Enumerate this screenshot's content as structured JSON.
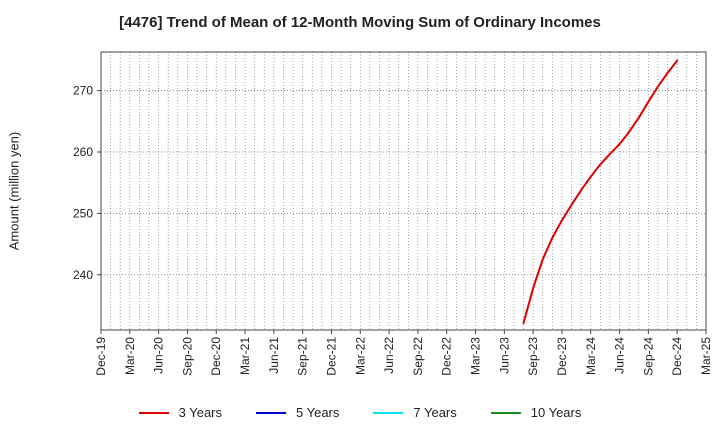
{
  "chart_data": {
    "type": "line",
    "title": "[4476]  Trend of Mean of 12-Month Moving Sum of Ordinary Incomes",
    "ylabel": "Amount (million yen)",
    "xlabel": "",
    "x_ticks": [
      "Dec-19",
      "Mar-20",
      "Jun-20",
      "Sep-20",
      "Dec-20",
      "Mar-21",
      "Jun-21",
      "Sep-21",
      "Dec-21",
      "Mar-22",
      "Jun-22",
      "Sep-22",
      "Dec-22",
      "Mar-23",
      "Jun-23",
      "Sep-23",
      "Dec-23",
      "Mar-24",
      "Jun-24",
      "Sep-24",
      "Dec-24",
      "Mar-25"
    ],
    "xlim": [
      "2019-12",
      "2025-03"
    ],
    "y_ticks": [
      240,
      250,
      260,
      270
    ],
    "ylim": [
      231,
      276.3
    ],
    "grid": true,
    "legend_position": "bottom",
    "series": [
      {
        "name": "3 Years",
        "color": "#e00000",
        "x": [
          "2023-08",
          "2023-09",
          "2023-10",
          "2023-11",
          "2023-12",
          "2024-01",
          "2024-02",
          "2024-03",
          "2024-04",
          "2024-05",
          "2024-06",
          "2024-07",
          "2024-08",
          "2024-09",
          "2024-10",
          "2024-11",
          "2024-12"
        ],
        "y": [
          232.1,
          237.8,
          242.5,
          246.0,
          248.9,
          251.4,
          253.8,
          256.0,
          258.0,
          259.7,
          261.3,
          263.3,
          265.6,
          268.2,
          270.7,
          272.9,
          274.9
        ]
      },
      {
        "name": "5 Years",
        "color": "#0000cc",
        "x": [],
        "y": []
      },
      {
        "name": "7 Years",
        "color": "#00e5ee",
        "x": [],
        "y": []
      },
      {
        "name": "10 Years",
        "color": "#1a8a1a",
        "x": [],
        "y": []
      }
    ]
  }
}
